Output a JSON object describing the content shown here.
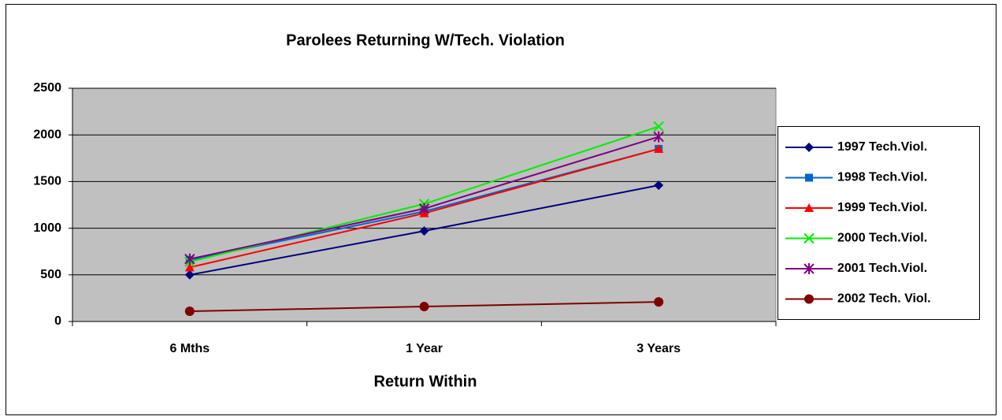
{
  "chart_data": {
    "type": "line",
    "title": "Parolees Returning W/Tech. Violation",
    "x_label": "Return Within",
    "categories": [
      "6 Mths",
      "1 Year",
      "3 Years"
    ],
    "series": [
      {
        "name": "1997 Tech.Viol.",
        "color": "#000080",
        "marker": "diamond",
        "values": [
          500,
          970,
          1460
        ]
      },
      {
        "name": "1998 Tech.Viol.",
        "color": "#0066cc",
        "marker": "square",
        "values": [
          660,
          1180,
          1850
        ]
      },
      {
        "name": "1999 Tech.Viol.",
        "color": "#ff0000",
        "marker": "triangle",
        "values": [
          580,
          1160,
          1850
        ]
      },
      {
        "name": "2000 Tech.Viol.",
        "color": "#00ee00",
        "marker": "x",
        "values": [
          640,
          1260,
          2090
        ]
      },
      {
        "name": "2001 Tech.Viol.",
        "color": "#800080",
        "marker": "star",
        "values": [
          670,
          1210,
          1980
        ]
      },
      {
        "name": "2002 Tech. Viol.",
        "color": "#800000",
        "marker": "circle",
        "values": [
          110,
          160,
          210
        ]
      }
    ],
    "ylim": [
      0,
      2500
    ],
    "yticks": [
      0,
      500,
      1000,
      1500,
      2000,
      2500
    ],
    "grid": true,
    "legend": "right"
  }
}
